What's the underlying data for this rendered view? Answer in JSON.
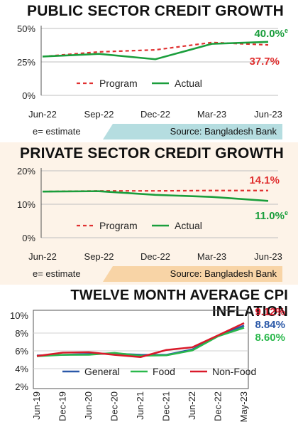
{
  "colors": {
    "program": "#e03030",
    "actual": "#1a9e3c",
    "general": "#2a58a8",
    "food": "#2ab84c",
    "nonfood": "#d91a2a"
  },
  "chart_data": [
    {
      "type": "line",
      "title": "PUBLIC SECTOR CREDIT GROWTH",
      "x": [
        "Jun-22",
        "Sep-22",
        "Dec-22",
        "Mar-23",
        "Jun-23"
      ],
      "yticks": [
        "0%",
        "25%",
        "50%"
      ],
      "ylim": [
        0,
        50
      ],
      "series": [
        {
          "name": "Program",
          "style": "dashed",
          "values": [
            29,
            32.5,
            34,
            39.5,
            37.7
          ]
        },
        {
          "name": "Actual",
          "style": "solid",
          "values": [
            29,
            31,
            27,
            38.5,
            40.0
          ]
        }
      ],
      "annotations": {
        "actual": "40.0%",
        "actual_sup": "e",
        "program": "37.7%"
      },
      "footnote": "e= estimate",
      "source": "Source: Bangladesh Bank"
    },
    {
      "type": "line",
      "title": "PRIVATE SECTOR CREDIT GROWTH",
      "x": [
        "Jun-22",
        "Sep-22",
        "Dec-22",
        "Mar-23",
        "Jun-23"
      ],
      "yticks": [
        "0%",
        "10%",
        "20%"
      ],
      "ylim": [
        0,
        20
      ],
      "series": [
        {
          "name": "Program",
          "style": "dashed",
          "values": [
            13.8,
            14.0,
            14.0,
            14.1,
            14.1
          ]
        },
        {
          "name": "Actual",
          "style": "solid",
          "values": [
            13.8,
            13.9,
            12.8,
            12.2,
            11.0
          ]
        }
      ],
      "annotations": {
        "program": "14.1%",
        "actual": "11.0%",
        "actual_sup": "e"
      },
      "footnote": "e= estimate",
      "source": "Source: Bangladesh Bank"
    },
    {
      "type": "line",
      "title": "TWELVE MONTH AVERAGE CPI INFLATION",
      "x": [
        "Jun-19",
        "Dec-19",
        "Jun-20",
        "Dec-20",
        "Jun-21",
        "Dec-21",
        "Jun-22",
        "Dec-22",
        "May-23"
      ],
      "yticks": [
        "2%",
        "4%",
        "6%",
        "8%",
        "10%"
      ],
      "ylim": [
        2,
        10
      ],
      "series": [
        {
          "name": "General",
          "values": [
            5.48,
            5.55,
            5.65,
            5.69,
            5.56,
            5.55,
            6.15,
            7.7,
            8.84
          ]
        },
        {
          "name": "Food",
          "values": [
            5.4,
            5.55,
            5.56,
            5.77,
            5.45,
            5.5,
            6.05,
            7.65,
            8.6
          ]
        },
        {
          "name": "Non-Food",
          "values": [
            5.42,
            5.8,
            5.85,
            5.55,
            5.3,
            6.1,
            6.4,
            7.75,
            9.12
          ]
        }
      ],
      "annotations": {
        "nonfood": "9.12%",
        "general": "8.84%",
        "food": "8.60%"
      }
    }
  ]
}
